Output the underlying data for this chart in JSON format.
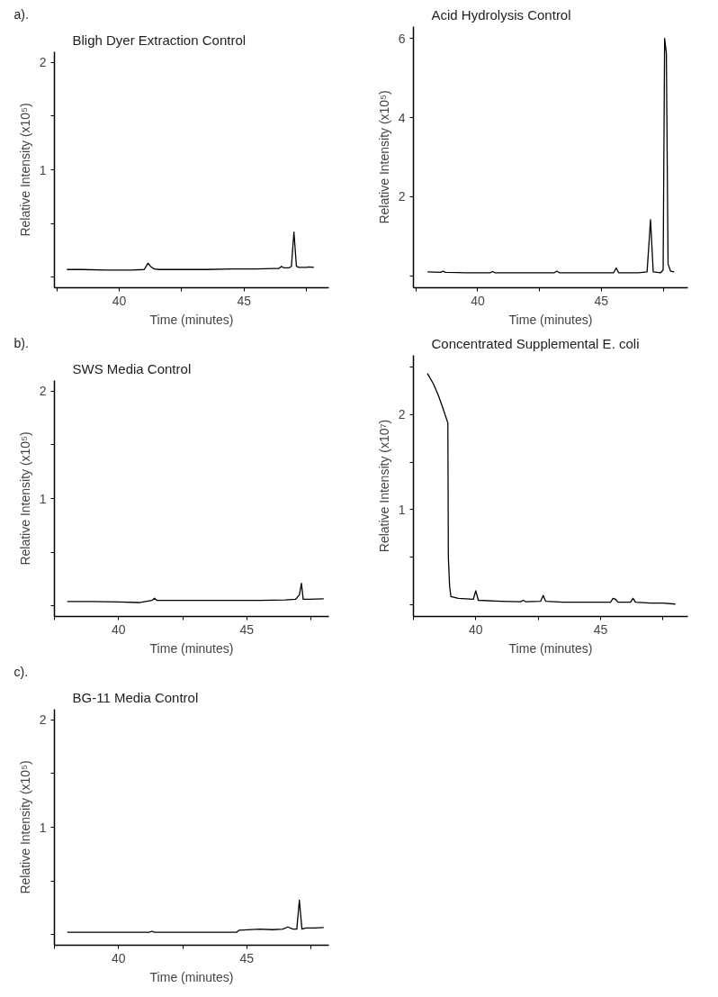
{
  "chart_data": [
    {
      "type": "line",
      "title": "Bligh Dyer Extraction Control",
      "xlabel": "Time (minutes)",
      "ylabel": "Relative Intensity (x10⁵)",
      "annotations": [
        "a)."
      ],
      "xlim": [
        37.4,
        48.4
      ],
      "ylim": [
        -0.1,
        2.1
      ],
      "xticks": [
        {
          "value": 37.5,
          "label": null
        },
        40,
        {
          "value": 42.5,
          "label": null
        },
        45,
        {
          "value": 47.5,
          "label": null
        }
      ],
      "yticks": [
        {
          "value": 0,
          "label": null
        },
        {
          "value": 0.5,
          "label": null
        },
        1,
        {
          "value": 1.5,
          "label": null
        },
        2
      ],
      "grid": false,
      "series": [
        {
          "color": "#000000",
          "x": [
            37.9,
            38.5,
            39.5,
            40.5,
            41.0,
            41.15,
            41.25,
            41.4,
            41.6,
            42.5,
            43.5,
            44.5,
            45.5,
            46.2,
            46.4,
            46.5,
            46.6,
            46.8,
            46.9,
            47.0,
            47.1,
            47.2,
            47.5,
            47.6,
            47.8
          ],
          "values": [
            0.07,
            0.07,
            0.065,
            0.065,
            0.07,
            0.13,
            0.1,
            0.075,
            0.07,
            0.07,
            0.07,
            0.075,
            0.075,
            0.08,
            0.08,
            0.1,
            0.085,
            0.085,
            0.1,
            0.42,
            0.1,
            0.09,
            0.09,
            0.095,
            0.09
          ]
        }
      ]
    },
    {
      "type": "line",
      "title": "Acid Hydrolysis Control",
      "xlabel": "Time (minutes)",
      "ylabel": "Relative Intensity (x10⁵)",
      "xlim": [
        37.4,
        48.5
      ],
      "ylim": [
        -0.3,
        6.3
      ],
      "xticks": [
        {
          "value": 37.5,
          "label": null
        },
        40,
        {
          "value": 42.5,
          "label": null
        },
        45,
        {
          "value": 47.5,
          "label": null
        }
      ],
      "yticks": [
        {
          "value": 0,
          "label": null
        },
        2,
        4,
        6
      ],
      "grid": false,
      "series": [
        {
          "color": "#000000",
          "x": [
            37.97,
            38.5,
            38.6,
            38.7,
            39.5,
            40.5,
            40.6,
            40.7,
            42,
            43.1,
            43.2,
            43.3,
            44.5,
            45.5,
            45.6,
            45.7,
            46.5,
            46.85,
            46.99,
            47.1,
            47.4,
            47.5,
            47.56,
            47.63,
            47.7,
            47.8,
            47.95
          ],
          "values": [
            0.1,
            0.09,
            0.12,
            0.09,
            0.08,
            0.08,
            0.11,
            0.08,
            0.08,
            0.08,
            0.12,
            0.08,
            0.08,
            0.08,
            0.2,
            0.08,
            0.08,
            0.1,
            1.42,
            0.1,
            0.08,
            0.15,
            6.0,
            5.63,
            0.3,
            0.12,
            0.1
          ]
        }
      ]
    },
    {
      "type": "line",
      "title": "SWS Media Control",
      "xlabel": "Time (minutes)",
      "ylabel": "Relative Intensity (x10⁵)",
      "annotations": [
        "b)."
      ],
      "xlim": [
        37.5,
        48.2
      ],
      "ylim": [
        -0.1,
        2.1
      ],
      "xticks": [
        {
          "value": 37.5,
          "label": null
        },
        40,
        {
          "value": 42.5,
          "label": null
        },
        45,
        {
          "value": 47.5,
          "label": null
        }
      ],
      "yticks": [
        {
          "value": 0,
          "label": null
        },
        {
          "value": 0.5,
          "label": null
        },
        1,
        {
          "value": 1.5,
          "label": null
        },
        2
      ],
      "grid": false,
      "series": [
        {
          "color": "#000000",
          "x": [
            38.0,
            39,
            40,
            40.8,
            41.3,
            41.4,
            41.5,
            42.5,
            44,
            45.5,
            46.5,
            46.9,
            47.05,
            47.13,
            47.2,
            47.4,
            48.0
          ],
          "values": [
            0.04,
            0.04,
            0.035,
            0.03,
            0.05,
            0.07,
            0.05,
            0.05,
            0.05,
            0.05,
            0.055,
            0.06,
            0.1,
            0.21,
            0.06,
            0.06,
            0.065
          ]
        }
      ]
    },
    {
      "type": "line",
      "title": "Concentrated Supplemental E. coli",
      "xlabel": "Time (minutes)",
      "ylabel": "Relative Intensity (x10⁷)",
      "xlim": [
        37.5,
        48.5
      ],
      "ylim": [
        -0.12,
        2.62
      ],
      "xticks": [
        {
          "value": 37.5,
          "label": null
        },
        40,
        {
          "value": 42.5,
          "label": null
        },
        45,
        {
          "value": 47.5,
          "label": null
        }
      ],
      "yticks": [
        {
          "value": 0,
          "label": null
        },
        {
          "value": 0.5,
          "label": null
        },
        1,
        {
          "value": 1.5,
          "label": null
        },
        2,
        {
          "value": 2.5,
          "label": null
        }
      ],
      "grid": false,
      "series": [
        {
          "color": "#000000",
          "x": [
            38.06,
            38.3,
            38.5,
            38.7,
            38.88,
            38.9,
            38.95,
            39.0,
            39.3,
            39.9,
            40.0,
            40.1,
            41,
            41.8,
            41.9,
            42.0,
            42.6,
            42.7,
            42.8,
            43.5,
            44.5,
            45.4,
            45.5,
            45.6,
            45.7,
            46.2,
            46.3,
            46.4,
            47.0,
            47.5,
            48.0
          ],
          "values": [
            2.43,
            2.32,
            2.2,
            2.05,
            1.91,
            0.5,
            0.2,
            0.09,
            0.07,
            0.06,
            0.15,
            0.05,
            0.04,
            0.035,
            0.05,
            0.035,
            0.04,
            0.1,
            0.04,
            0.03,
            0.03,
            0.03,
            0.07,
            0.06,
            0.03,
            0.03,
            0.07,
            0.03,
            0.02,
            0.02,
            0.01
          ]
        }
      ]
    },
    {
      "type": "line",
      "title": "BG-11 Media Control",
      "xlabel": "Time (minutes)",
      "ylabel": "Relative Intensity (x10⁵)",
      "annotations": [
        "c)."
      ],
      "xlim": [
        37.5,
        48.2
      ],
      "ylim": [
        -0.1,
        2.1
      ],
      "xticks": [
        {
          "value": 37.5,
          "label": null
        },
        40,
        {
          "value": 42.5,
          "label": null
        },
        45,
        {
          "value": 47.5,
          "label": null
        }
      ],
      "yticks": [
        {
          "value": 0,
          "label": null
        },
        {
          "value": 0.5,
          "label": null
        },
        1,
        {
          "value": 1.5,
          "label": null
        },
        2
      ],
      "grid": false,
      "series": [
        {
          "color": "#000000",
          "x": [
            38.0,
            39.5,
            41.2,
            41.3,
            41.4,
            43,
            44.6,
            44.7,
            45.5,
            46.0,
            46.4,
            46.6,
            46.8,
            46.95,
            47.05,
            47.15,
            47.3,
            47.6,
            48.0
          ],
          "values": [
            0.02,
            0.02,
            0.02,
            0.03,
            0.02,
            0.02,
            0.02,
            0.04,
            0.05,
            0.045,
            0.05,
            0.07,
            0.05,
            0.05,
            0.32,
            0.05,
            0.06,
            0.06,
            0.065
          ]
        }
      ]
    }
  ]
}
